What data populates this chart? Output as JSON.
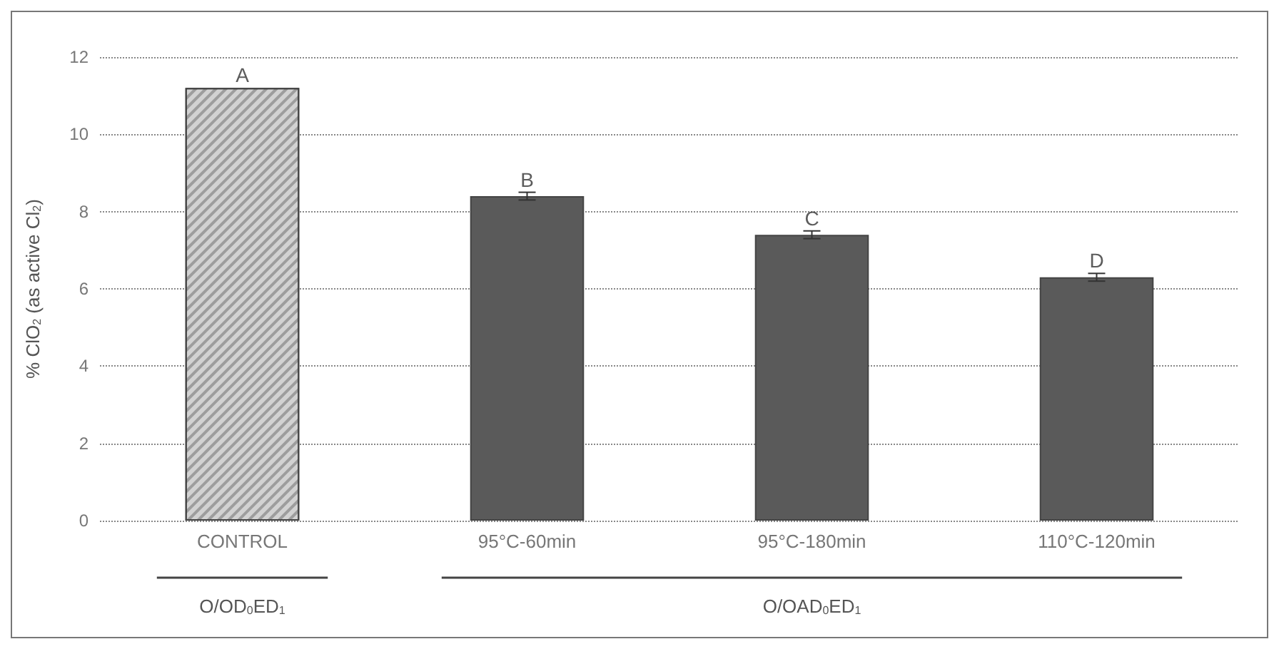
{
  "chart_data": {
    "type": "bar",
    "ylabel": "% ClO$_{2}$ (as active Cl$_{2}$)",
    "categories": [
      "CONTROL",
      "95°C-60min",
      "95°C-180min",
      "110°C-120min"
    ],
    "values": [
      11.2,
      8.4,
      7.4,
      6.3
    ],
    "colors": [
      "#d2d2d2",
      "#5a5a5a",
      "#5a5a5a",
      "#5a5a5a"
    ],
    "errors": [
      null,
      0.1,
      0.1,
      0.1
    ],
    "ylim": [
      0,
      12
    ],
    "yticks": [
      0,
      2,
      4,
      6,
      8,
      10,
      12
    ],
    "grid": "y",
    "annotations": [
      {
        "text": "A",
        "x": "CONTROL",
        "y": 11.2
      },
      {
        "text": "B",
        "x": "95°C-60min",
        "y": 8.4
      },
      {
        "text": "C",
        "x": "95°C-180min",
        "y": 7.4
      },
      {
        "text": "D",
        "x": "110°C-120min",
        "y": 6.3
      },
      "O/OD$_{0}$ED$_{1}$",
      "O/OAD$_{0}$ED$_{1}$"
    ]
  }
}
